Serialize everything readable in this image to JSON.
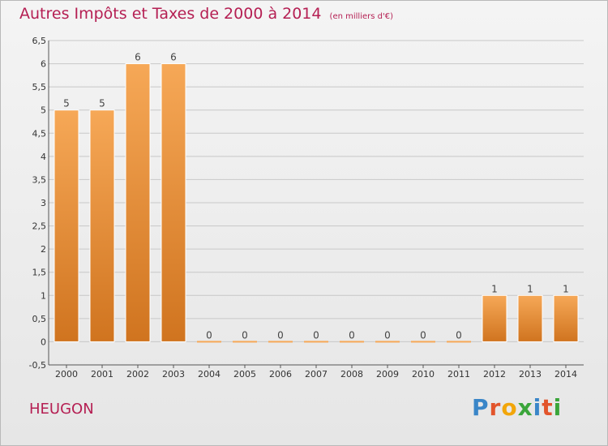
{
  "title": "Autres Impôts et Taxes de 2000 à 2014",
  "subtitle": "(en milliers d'€)",
  "location": "HEUGON",
  "brand": {
    "letters": [
      "P",
      "r",
      "o",
      "x",
      "i",
      "t",
      "i"
    ],
    "colors": [
      "#3a86c8",
      "#e2542b",
      "#f2a60a",
      "#3aa53a",
      "#3a86c8",
      "#e2542b",
      "#3aa53a"
    ]
  },
  "colors": {
    "title": "#b51f53",
    "bar_top": "#f6a857",
    "bar_bottom": "#d0741f",
    "grid": "#c8c8c8"
  },
  "chart_data": {
    "type": "bar",
    "categories": [
      "2000",
      "2001",
      "2002",
      "2003",
      "2004",
      "2005",
      "2006",
      "2007",
      "2008",
      "2009",
      "2010",
      "2011",
      "2012",
      "2013",
      "2014"
    ],
    "values": [
      5,
      5,
      6,
      6,
      0,
      0,
      0,
      0,
      0,
      0,
      0,
      0,
      1,
      1,
      1
    ],
    "value_labels": [
      "5",
      "5",
      "6",
      "6",
      "0",
      "0",
      "0",
      "0",
      "0",
      "0",
      "0",
      "0",
      "1",
      "1",
      "1"
    ],
    "yticks": [
      "-0,5",
      "0",
      "0,5",
      "1",
      "1,5",
      "2",
      "2,5",
      "3",
      "3,5",
      "4",
      "4,5",
      "5",
      "5,5",
      "6",
      "6,5"
    ],
    "ylim": [
      -0.5,
      6.5
    ],
    "grid": true
  }
}
